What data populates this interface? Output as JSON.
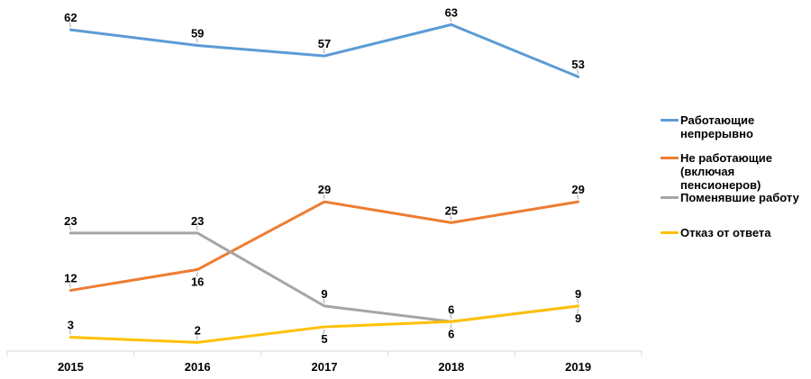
{
  "chart_data": {
    "type": "line",
    "title": "",
    "xlabel": "",
    "ylabel": "",
    "categories": [
      "2015",
      "2016",
      "2017",
      "2018",
      "2019"
    ],
    "series": [
      {
        "name": "Работающие непрерывно",
        "color": "#5B9BD5",
        "values": [
          62,
          59,
          57,
          63,
          53
        ],
        "label_positions": [
          "above",
          "above",
          "above",
          "above",
          "above"
        ]
      },
      {
        "name": "Не работающие (включая пенсионеров)",
        "color": "#ED7D31",
        "values": [
          12,
          16,
          29,
          25,
          29
        ],
        "label_positions": [
          "above",
          "below",
          "above",
          "above",
          "above"
        ]
      },
      {
        "name": "Поменявшие работу",
        "color": "#A5A5A5",
        "values": [
          23,
          23,
          9,
          6,
          9
        ],
        "label_positions": [
          "above",
          "above",
          "above",
          "above",
          "above"
        ]
      },
      {
        "name": "Отказ от ответа",
        "color": "#FFC000",
        "values": [
          3,
          2,
          5,
          6,
          9
        ],
        "label_positions": [
          "above",
          "above",
          "below",
          "below",
          "below"
        ]
      }
    ],
    "ylim": [
      0,
      66
    ],
    "grid": false,
    "data_labels": true,
    "legend_position": "right",
    "axis_color": "#D9D9D9",
    "leader_color": "#A6A6A6",
    "label_color": "#000000"
  }
}
